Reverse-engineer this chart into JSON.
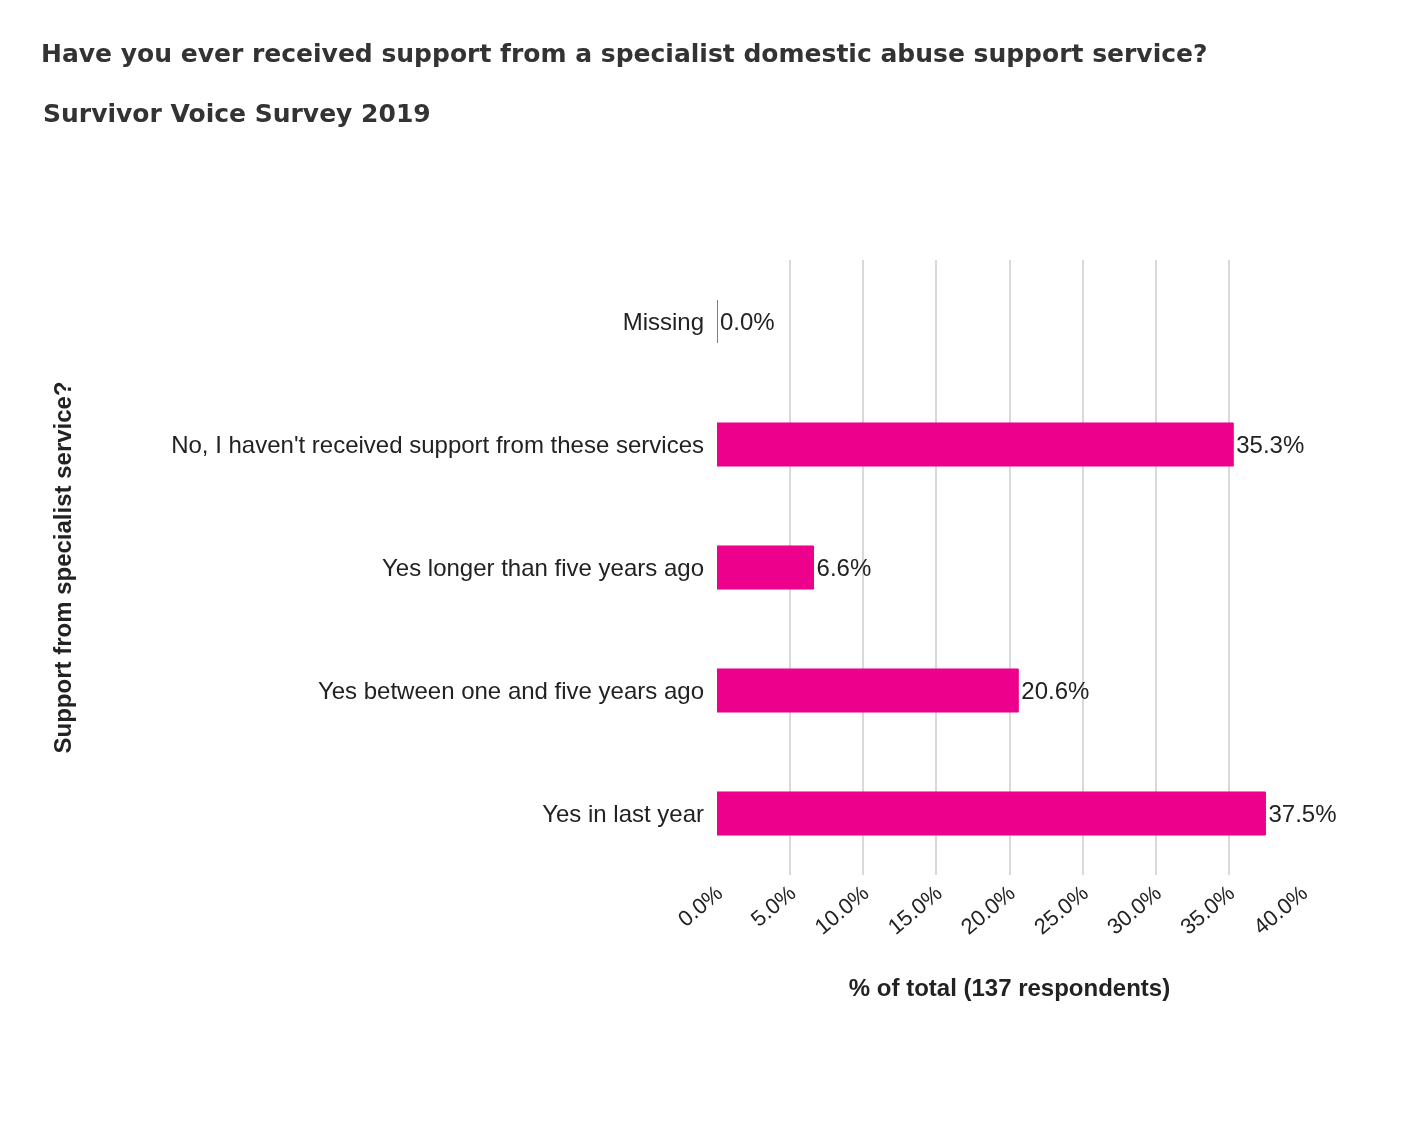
{
  "chart_data": {
    "type": "bar",
    "orientation": "horizontal",
    "title": "Have you ever received support from a specialist domestic abuse support service?",
    "subtitle": "Survivor Voice Survey 2019",
    "xlabel": "% of total (137 respondents)",
    "ylabel": "Support from specialist service?",
    "categories": [
      "Missing",
      "No, I haven't received support from these services",
      "Yes longer than five years ago",
      "Yes between one and five years ago",
      "Yes in last year"
    ],
    "values": [
      0.0,
      35.3,
      6.6,
      20.6,
      37.5
    ],
    "value_labels": [
      "0.0%",
      "35.3%",
      "6.6%",
      "20.6%",
      "37.5%"
    ],
    "color": "#ec008c",
    "xlim": [
      0,
      40
    ],
    "xticks": [
      {
        "value": 0,
        "label": "0.0%"
      },
      {
        "value": 5,
        "label": "5.0%"
      },
      {
        "value": 10,
        "label": "10.0%"
      },
      {
        "value": 15,
        "label": "15.0%"
      },
      {
        "value": 20,
        "label": "20.0%"
      },
      {
        "value": 25,
        "label": "25.0%"
      },
      {
        "value": 30,
        "label": "30.0%"
      },
      {
        "value": 35,
        "label": "35.0%"
      },
      {
        "value": 40,
        "label": "40.0%"
      }
    ],
    "grid": "x"
  }
}
